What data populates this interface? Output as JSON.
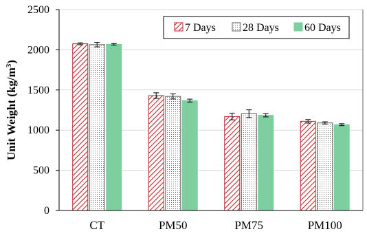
{
  "chart_data": {
    "type": "bar",
    "title": "",
    "xlabel": "",
    "ylabel": "Unit Weight (kg/m",
    "ylabel_sup": "3",
    "ylabel_close": ")",
    "ylim": [
      0,
      2500
    ],
    "yticks": [
      0,
      500,
      1000,
      1500,
      2000,
      2500
    ],
    "yticks_text": [
      "0",
      "500",
      "1000",
      "1500",
      "2000",
      "2500"
    ],
    "grid": true,
    "legend_position": "top-right",
    "categories": [
      "CT",
      "PM50",
      "PM75",
      "PM100"
    ],
    "series": [
      {
        "name": "7 Days",
        "values": [
          2075,
          1430,
          1170,
          1110
        ],
        "errors": [
          12,
          35,
          42,
          22
        ],
        "color": "#c0282d",
        "pattern": "diagonal-hatch"
      },
      {
        "name": "28 Days",
        "values": [
          2065,
          1420,
          1205,
          1090
        ],
        "errors": [
          28,
          32,
          48,
          14
        ],
        "color": "#606060",
        "pattern": "dotted"
      },
      {
        "name": "60 Days",
        "values": [
          2068,
          1368,
          1185,
          1068
        ],
        "errors": [
          10,
          18,
          20,
          12
        ],
        "color": "#7dcfa0",
        "pattern": "solid"
      }
    ]
  }
}
